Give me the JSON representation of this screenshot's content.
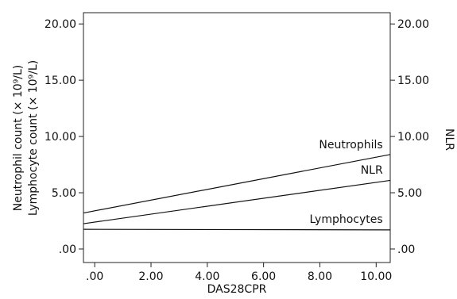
{
  "chart_data": {
    "type": "line",
    "xlabel": "DAS28CPR",
    "ylabel_left": [
      "Neutrophil count (× 10⁹/L)",
      "Lymphocyte count (× 10⁹/L)"
    ],
    "ylabel_right": "NLR",
    "x_ticks": [
      ".00",
      "2.00",
      "4.00",
      "6.00",
      "8.00",
      "10.00"
    ],
    "y_ticks_left": [
      ".00",
      "5.00",
      "10.00",
      "15.00",
      "20.00"
    ],
    "y_ticks_right": [
      ".00",
      "5.00",
      "10.00",
      "15.00",
      "20.00"
    ],
    "xlim": [
      -0.4,
      10.5
    ],
    "ylim": [
      -1.2,
      21.0
    ],
    "ylim_right": [
      -1.2,
      21.0
    ],
    "grid": false,
    "series": [
      {
        "name": "Neutrophils",
        "axis": "left",
        "x": [
          -0.4,
          10.5
        ],
        "values": [
          3.2,
          8.4
        ]
      },
      {
        "name": "NLR",
        "axis": "right",
        "x": [
          -0.4,
          10.5
        ],
        "values": [
          2.25,
          6.1
        ]
      },
      {
        "name": "Lymphocytes",
        "axis": "left",
        "x": [
          -0.4,
          10.5
        ],
        "values": [
          1.75,
          1.7
        ]
      }
    ]
  }
}
